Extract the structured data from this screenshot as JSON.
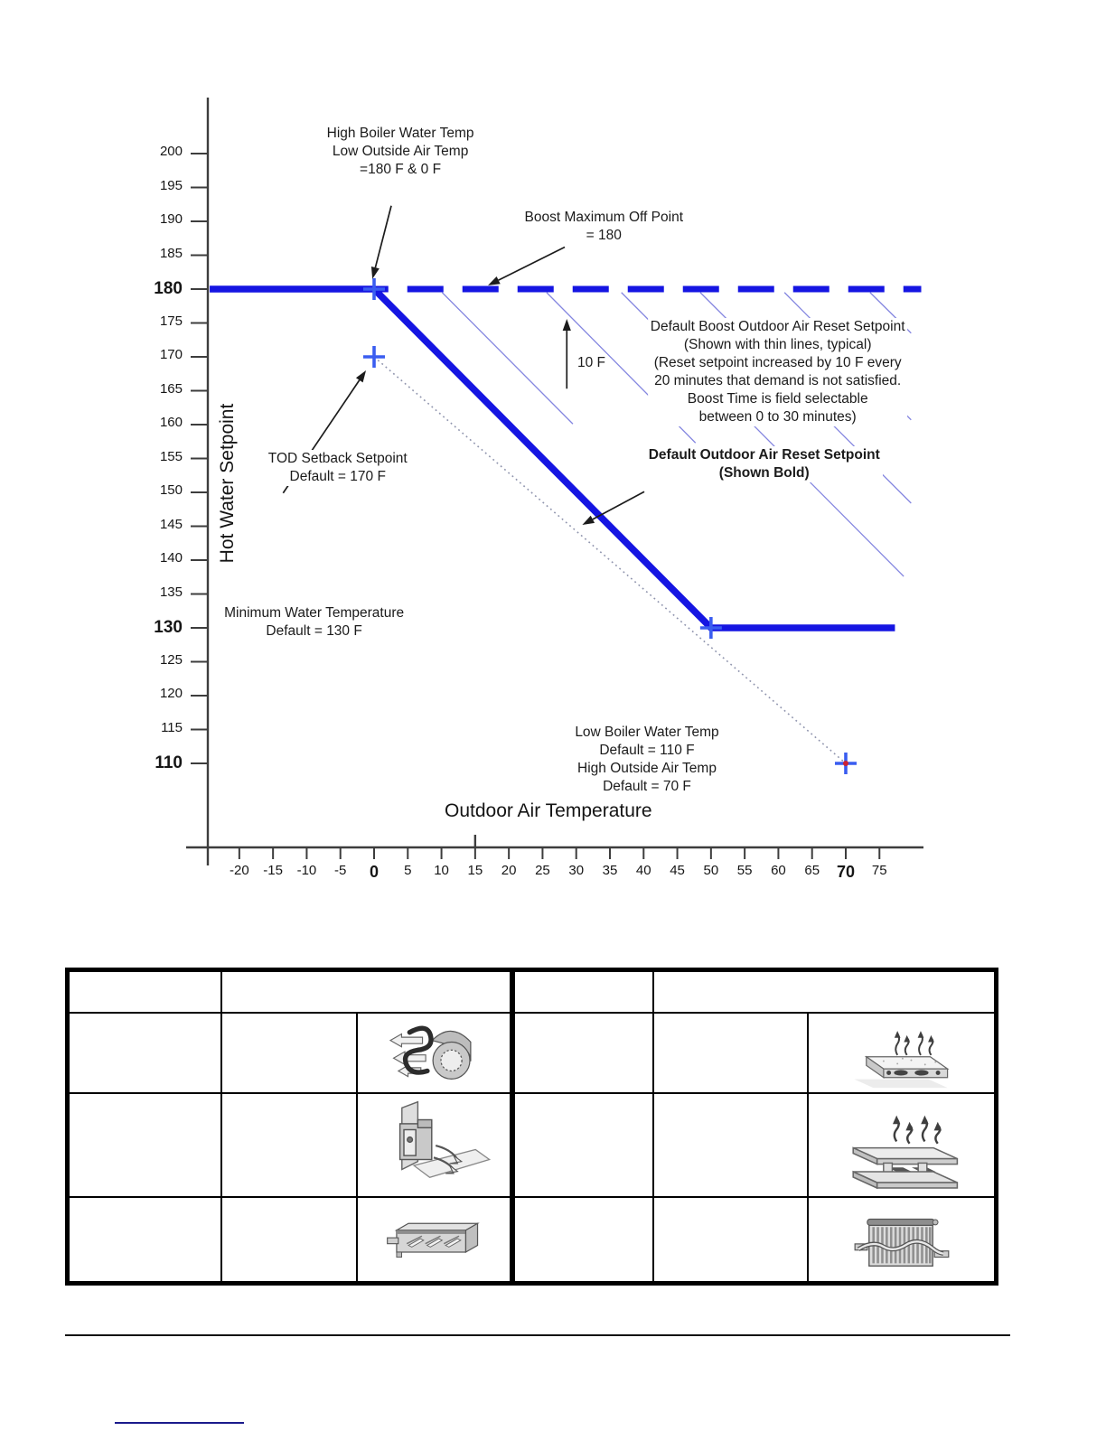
{
  "chart_data": {
    "type": "line",
    "title": "",
    "xlabel": "Outdoor Air Temperature",
    "ylabel": "Hot Water Setpoint",
    "x_ticks": [
      -20,
      -15,
      -10,
      -5,
      0,
      5,
      10,
      15,
      20,
      25,
      30,
      35,
      40,
      45,
      50,
      55,
      60,
      65,
      70,
      75
    ],
    "x_bold_ticks": [
      0,
      70
    ],
    "x_tall_ticks": [
      15
    ],
    "y_ticks": [
      200,
      195,
      190,
      185,
      180,
      175,
      170,
      165,
      160,
      155,
      150,
      145,
      140,
      135,
      130,
      125,
      120,
      115,
      110
    ],
    "y_bold_ticks": [
      180,
      130,
      110
    ],
    "xlim": [
      -25.5,
      81.5
    ],
    "ylim": [
      105,
      208
    ],
    "grid": false,
    "series": [
      {
        "name": "default-outdoor-air-reset-bold",
        "style": "bold",
        "points": [
          [
            -24.4,
            180
          ],
          [
            0,
            180
          ],
          [
            50,
            130
          ],
          [
            77.3,
            130
          ]
        ]
      },
      {
        "name": "boost-maximum-off-dashed",
        "style": "dashed",
        "points": [
          [
            0.1,
            180
          ],
          [
            81.2,
            180
          ]
        ]
      },
      {
        "name": "tod-setback-dotted",
        "style": "dotted",
        "points": [
          [
            0,
            170
          ],
          [
            70,
            110
          ]
        ]
      }
    ],
    "boost_lines": [
      [
        10.1,
        179.5,
        29.5,
        160.1
      ],
      [
        25.6,
        179.5,
        47.7,
        157.3
      ],
      [
        36.7,
        179.5,
        78.6,
        137.6
      ],
      [
        48.4,
        179.5,
        79.7,
        148.4
      ],
      [
        60.9,
        179.5,
        79.7,
        160.7
      ],
      [
        73.6,
        179.5,
        79.7,
        173.5
      ]
    ],
    "markers": [
      {
        "x": 0,
        "y": 180,
        "red_center": false
      },
      {
        "x": 0,
        "y": 170,
        "red_center": false
      },
      {
        "x": 50,
        "y": 130,
        "red_center": false
      },
      {
        "x": 70,
        "y": 110,
        "red_center": true
      }
    ],
    "annotations": [
      {
        "id": "high-boiler-label",
        "lines": [
          "High Boiler Water Temp",
          "Low Outside Air Temp",
          "=180 F & 0 F"
        ],
        "x": 3.9,
        "y": 204.3,
        "bold": false,
        "align": "center"
      },
      {
        "id": "boost-max-off-label",
        "lines": [
          "Boost Maximum Off Point",
          "= 180"
        ],
        "x": 34.1,
        "y": 191.9,
        "bold": false,
        "align": "center"
      },
      {
        "id": "boost-description-label",
        "lines": [
          "Default Boost Outdoor Air Reset Setpoint",
          "(Shown with thin lines, typical)",
          "(Reset setpoint increased by 10 F every",
          "20 minutes that demand is not satisfied.",
          "Boost Time is field selectable",
          "between 0 to 30 minutes)"
        ],
        "x": 59.9,
        "y": 175.7,
        "bold": false,
        "align": "center"
      },
      {
        "id": "default-reset-bold-label",
        "lines": [
          "Default Outdoor Air Reset Setpoint",
          "(Shown Bold)"
        ],
        "x": 57.9,
        "y": 156.8,
        "bold": true,
        "align": "center"
      },
      {
        "id": "tod-setback-label",
        "lines": [
          "TOD Setback Setpoint",
          "Default  = 170 F"
        ],
        "x": -5.4,
        "y": 156.3,
        "bold": false,
        "align": "center"
      },
      {
        "id": "minimum-water-label",
        "lines": [
          "Minimum Water Temperature",
          "Default = 130 F"
        ],
        "x": -8.9,
        "y": 133.5,
        "bold": false,
        "align": "center"
      },
      {
        "id": "low-boiler-label",
        "lines": [
          "Low Boiler Water Temp",
          "Default = 110 F",
          "High Outside Air Temp",
          "Default = 70 F"
        ],
        "x": 40.5,
        "y": 115.9,
        "bold": false,
        "align": "center"
      },
      {
        "id": "ten-f-label",
        "lines": [
          "10 F"
        ],
        "x": 29.9,
        "y": 169.1,
        "bold": false,
        "align": "left"
      }
    ],
    "arrows": [
      {
        "from": [
          2.55,
          192.3
        ],
        "to": [
          -0.25,
          181.5
        ]
      },
      {
        "from": [
          28.3,
          186.2
        ],
        "to": [
          16.9,
          180.55
        ]
      },
      {
        "from": [
          -13.5,
          149.9
        ],
        "to": [
          -1.2,
          168.0
        ]
      },
      {
        "from": [
          40.1,
          150.1
        ],
        "to": [
          30.9,
          145.2
        ]
      },
      {
        "from": [
          28.6,
          165.3
        ],
        "to": [
          28.6,
          175.6
        ]
      }
    ],
    "colors": {
      "bold_line": "#1515e2",
      "thin_line": "#8486e0",
      "dotted_line": "#8f94ad",
      "marker": "#3a5df0",
      "marker_center": "#cc2233",
      "axis": "#3d3d3d",
      "arrow": "#1c1c1c",
      "text": "#1b1b1b"
    },
    "legend": null
  },
  "equipment_table": {
    "header": {
      "left_col1": "",
      "left_col23": "",
      "right_col1": "",
      "right_col23": ""
    },
    "rows": [
      {
        "l1": "",
        "l2": "",
        "l_icon": "fan-coil-unit-icon",
        "r1": "",
        "r2": "",
        "r_icon": "radiant-floor-icon"
      },
      {
        "l1": "",
        "l2": "",
        "l_icon": "unit-heater-icon",
        "r1": "",
        "r2": "",
        "r_icon": "radiant-ceiling-panel-icon"
      },
      {
        "l1": "",
        "l2": "",
        "l_icon": "baseboard-convector-icon",
        "r1": "",
        "r2": "",
        "r_icon": "radiator-icon"
      }
    ]
  },
  "footer": {
    "rule_color": "#141414",
    "link_underline_color": "#1a1a8c"
  }
}
